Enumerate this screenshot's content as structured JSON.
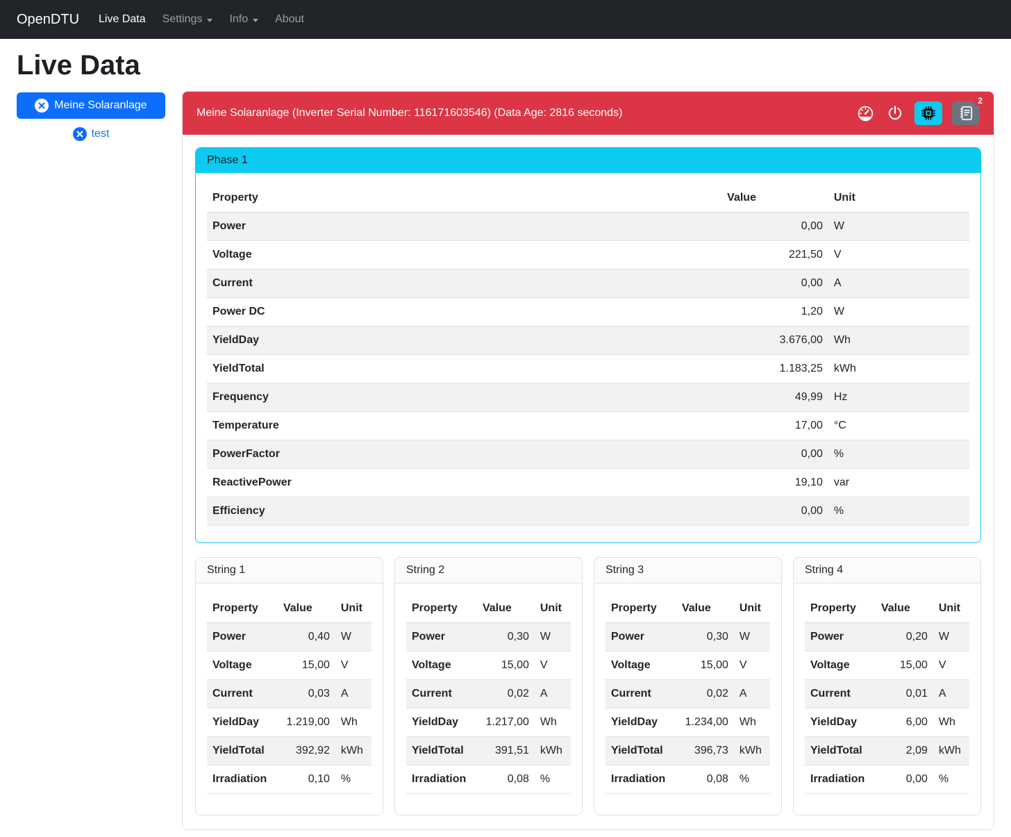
{
  "navbar": {
    "brand": "OpenDTU",
    "items": [
      {
        "label": "Live Data",
        "active": true,
        "dropdown": false
      },
      {
        "label": "Settings",
        "active": false,
        "dropdown": true
      },
      {
        "label": "Info",
        "active": false,
        "dropdown": true
      },
      {
        "label": "About",
        "active": false,
        "dropdown": false
      }
    ]
  },
  "page": {
    "title": "Live Data"
  },
  "selector": {
    "primary_button_label": "Meine Solaranlage",
    "secondary_link_label": "test"
  },
  "inverter": {
    "header_text": "Meine Solaranlage (Inverter Serial Number: 116171603546) (Data Age: 2816 seconds)",
    "event_badge_count": "2",
    "action_icons": [
      "speedometer-icon",
      "power-icon",
      "cpu-icon",
      "journal-text-icon"
    ]
  },
  "columns": {
    "property": "Property",
    "value": "Value",
    "unit": "Unit"
  },
  "phase": {
    "title": "Phase 1",
    "rows": [
      [
        "Power",
        "0,00",
        "W"
      ],
      [
        "Voltage",
        "221,50",
        "V"
      ],
      [
        "Current",
        "0,00",
        "A"
      ],
      [
        "Power DC",
        "1,20",
        "W"
      ],
      [
        "YieldDay",
        "3.676,00",
        "Wh"
      ],
      [
        "YieldTotal",
        "1.183,25",
        "kWh"
      ],
      [
        "Frequency",
        "49,99",
        "Hz"
      ],
      [
        "Temperature",
        "17,00",
        "°C"
      ],
      [
        "PowerFactor",
        "0,00",
        "%"
      ],
      [
        "ReactivePower",
        "19,10",
        "var"
      ],
      [
        "Efficiency",
        "0,00",
        "%"
      ]
    ]
  },
  "strings": [
    {
      "title": "String 1",
      "rows": [
        [
          "Power",
          "0,40",
          "W"
        ],
        [
          "Voltage",
          "15,00",
          "V"
        ],
        [
          "Current",
          "0,03",
          "A"
        ],
        [
          "YieldDay",
          "1.219,00",
          "Wh"
        ],
        [
          "YieldTotal",
          "392,92",
          "kWh"
        ],
        [
          "Irradiation",
          "0,10",
          "%"
        ]
      ]
    },
    {
      "title": "String 2",
      "rows": [
        [
          "Power",
          "0,30",
          "W"
        ],
        [
          "Voltage",
          "15,00",
          "V"
        ],
        [
          "Current",
          "0,02",
          "A"
        ],
        [
          "YieldDay",
          "1.217,00",
          "Wh"
        ],
        [
          "YieldTotal",
          "391,51",
          "kWh"
        ],
        [
          "Irradiation",
          "0,08",
          "%"
        ]
      ]
    },
    {
      "title": "String 3",
      "rows": [
        [
          "Power",
          "0,30",
          "W"
        ],
        [
          "Voltage",
          "15,00",
          "V"
        ],
        [
          "Current",
          "0,02",
          "A"
        ],
        [
          "YieldDay",
          "1.234,00",
          "Wh"
        ],
        [
          "YieldTotal",
          "396,73",
          "kWh"
        ],
        [
          "Irradiation",
          "0,08",
          "%"
        ]
      ]
    },
    {
      "title": "String 4",
      "rows": [
        [
          "Power",
          "0,20",
          "W"
        ],
        [
          "Voltage",
          "15,00",
          "V"
        ],
        [
          "Current",
          "0,01",
          "A"
        ],
        [
          "YieldDay",
          "6,00",
          "Wh"
        ],
        [
          "YieldTotal",
          "2,09",
          "kWh"
        ],
        [
          "Irradiation",
          "0,00",
          "%"
        ]
      ]
    }
  ],
  "colors": {
    "navbar_bg": "#212529",
    "danger": "#dc3545",
    "info": "#0dcaf0",
    "primary": "#0d6efd",
    "secondary": "#6c757d",
    "stripe": "#f2f2f2"
  }
}
